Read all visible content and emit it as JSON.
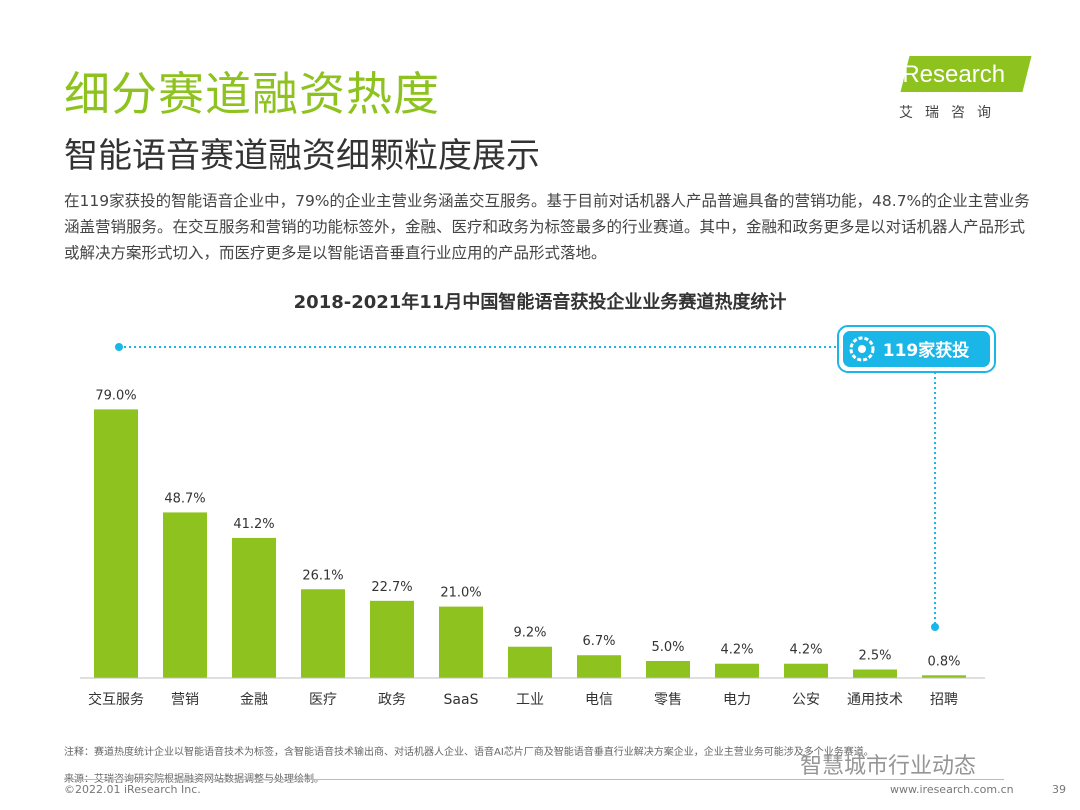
{
  "header": {
    "title": "细分赛道融资热度",
    "subtitle": "智能语音赛道融资细颗粒度展示",
    "logo_text": "iResearch",
    "logo_cn": "艾瑞咨询"
  },
  "summary": "在119家获投的智能语音企业中，79%的企业主营业务涵盖交互服务。基于目前对话机器人产品普遍具备的营销功能，48.7%的企业主营业务涵盖营销服务。在交互服务和营销的功能标签外，金融、医疗和政务为标签最多的行业赛道。其中，金融和政务更多是以对话机器人产品形式或解决方案形式切入，而医疗更多是以智能语音垂直行业应用的产品形式落地。",
  "chart_data": {
    "type": "bar",
    "title": "2018-2021年11月中国智能语音获投企业业务赛道热度统计",
    "categories": [
      "交互服务",
      "营销",
      "金融",
      "医疗",
      "政务",
      "SaaS",
      "工业",
      "电信",
      "零售",
      "电力",
      "公安",
      "通用技术",
      "招聘"
    ],
    "values": [
      79.0,
      48.7,
      41.2,
      26.1,
      22.7,
      21.0,
      9.2,
      6.7,
      5.0,
      4.2,
      4.2,
      2.5,
      0.8
    ],
    "value_labels": [
      "79.0%",
      "48.7%",
      "41.2%",
      "26.1%",
      "22.7%",
      "21.0%",
      "9.2%",
      "6.7%",
      "5.0%",
      "4.2%",
      "4.2%",
      "2.5%",
      "0.8%"
    ],
    "ylim": [
      0,
      100
    ],
    "grid": false,
    "bar_color": "#8dc21f",
    "annotation": "119家获投",
    "annotation_color": "#1ab6e8"
  },
  "notes": {
    "note": "注释：赛道热度统计企业以智能语音技术为标签，含智能语音技术输出商、对话机器人企业、语音AI芯片厂商及智能语音垂直行业解决方案企业，企业主营业务可能涉及多个业务赛道。",
    "source": "来源：艾瑞咨询研究院根据融资网站数据调整与处理绘制。"
  },
  "footer": {
    "copyright": "©2022.01 iResearch Inc.",
    "website": "www.iresearch.com.cn",
    "page": "39",
    "watermark": "智慧城市行业动态"
  }
}
